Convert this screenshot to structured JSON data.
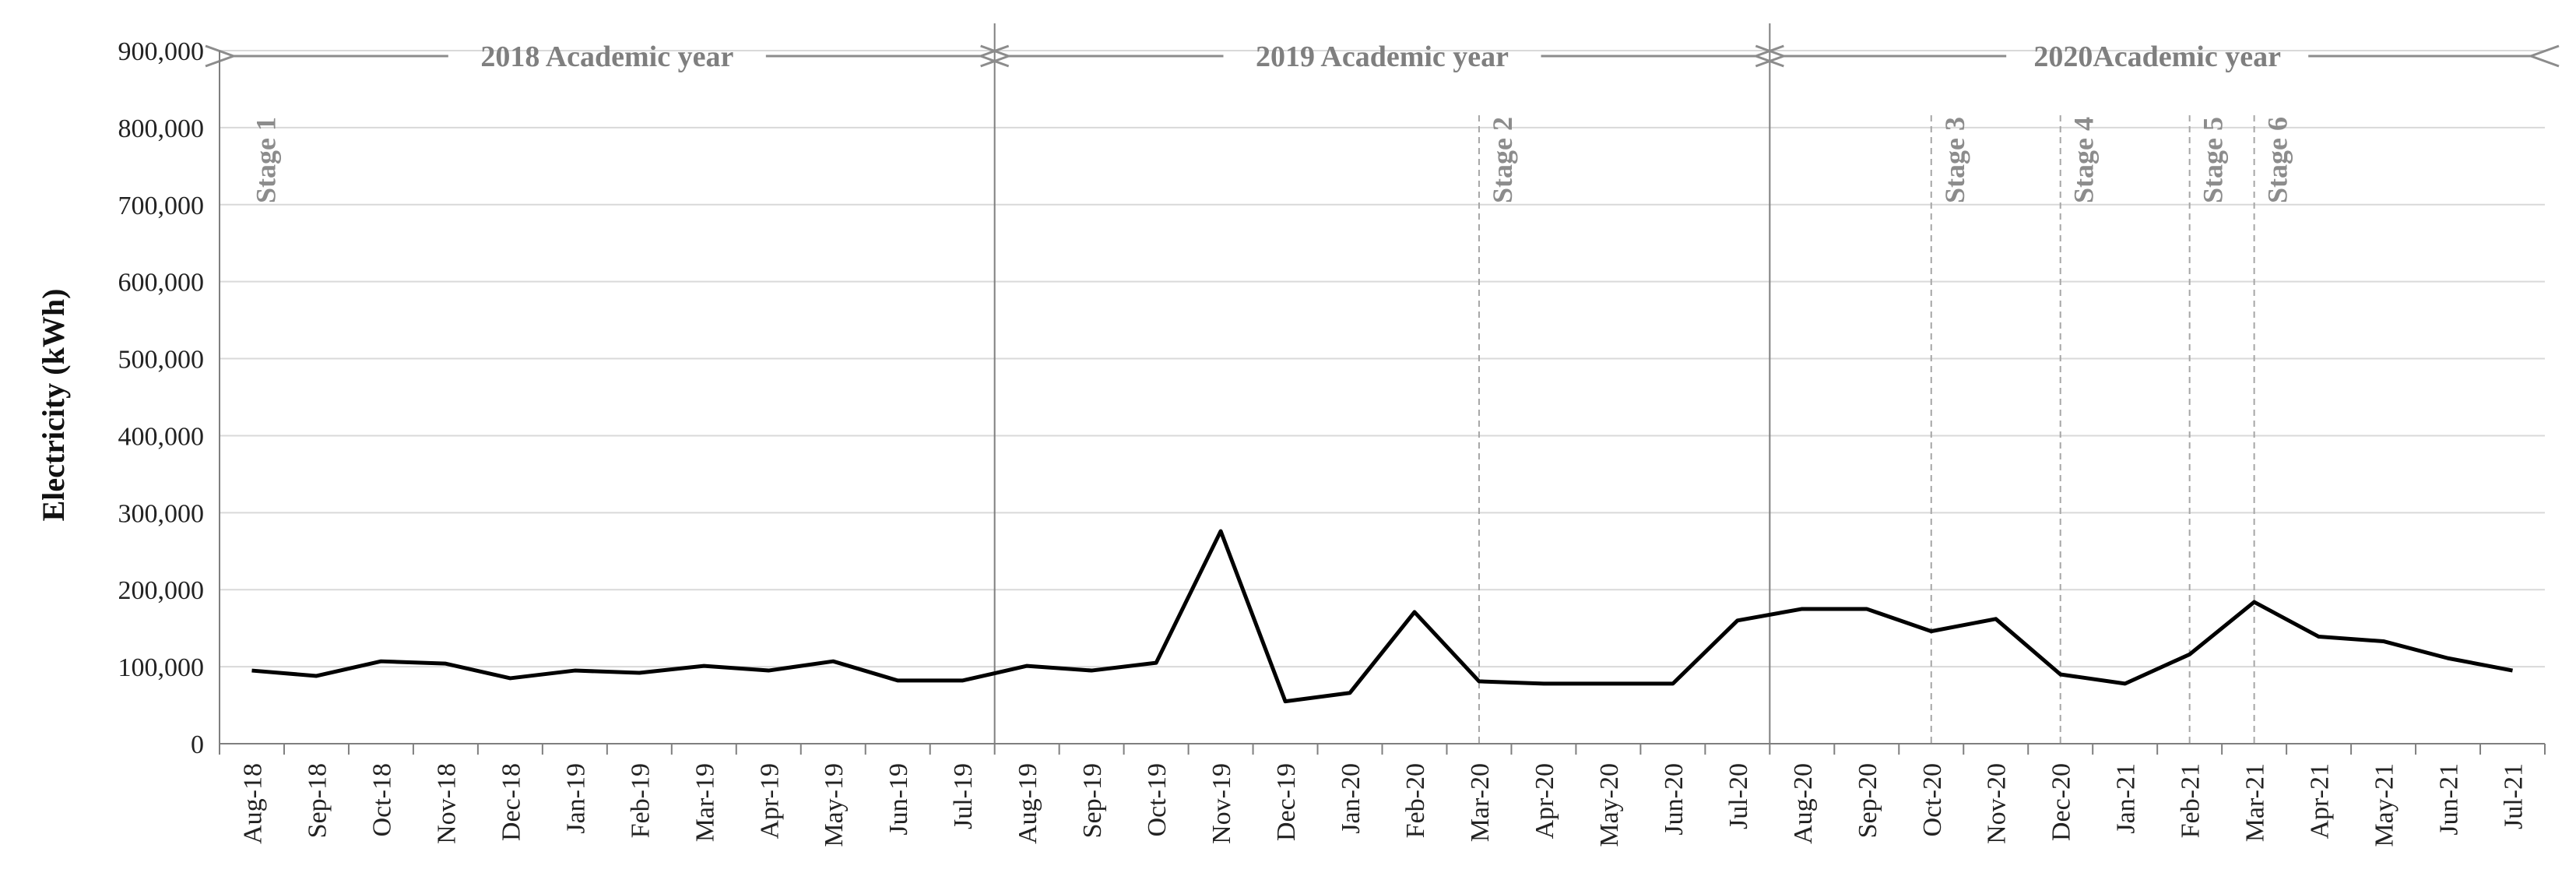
{
  "chart_data": {
    "type": "line",
    "title": "",
    "xlabel": "",
    "ylabel": "Electricity (kWh)",
    "ylim": [
      0,
      900000
    ],
    "yticks": [
      0,
      100000,
      200000,
      300000,
      400000,
      500000,
      600000,
      700000,
      800000,
      900000
    ],
    "ytick_labels": [
      "0",
      "100,000",
      "200,000",
      "300,000",
      "400,000",
      "500,000",
      "600,000",
      "700,000",
      "800,000",
      "900,000"
    ],
    "grid": "horizontal",
    "legend": "none",
    "categories": [
      "Aug-18",
      "Sep-18",
      "Oct-18",
      "Nov-18",
      "Dec-18",
      "Jan-19",
      "Feb-19",
      "Mar-19",
      "Apr-19",
      "May-19",
      "Jun-19",
      "Jul-19",
      "Aug-19",
      "Sep-19",
      "Oct-19",
      "Nov-19",
      "Dec-19",
      "Jan-20",
      "Feb-20",
      "Mar-20",
      "Apr-20",
      "May-20",
      "Jun-20",
      "Jul-20",
      "Aug-20",
      "Sep-20",
      "Oct-20",
      "Nov-20",
      "Dec-20",
      "Jan-21",
      "Feb-21",
      "Mar-21",
      "Apr-21",
      "May-21",
      "Jun-21",
      "Jul-21"
    ],
    "series": [
      {
        "values": [
          95000,
          88000,
          107000,
          104000,
          85000,
          95000,
          92000,
          101000,
          95000,
          107000,
          82000,
          82000,
          101000,
          95000,
          105000,
          276000,
          55000,
          66000,
          171000,
          81000,
          78000,
          78000,
          78000,
          160000,
          175000,
          175000,
          146000,
          162000,
          90000,
          78000,
          116000,
          184000,
          139000,
          133000,
          111000,
          95000
        ],
        "color": "#000000"
      }
    ],
    "academic_years": [
      {
        "label": "2018 Academic year",
        "start_index": 0,
        "end_index": 11
      },
      {
        "label": "2019 Academic year",
        "start_index": 12,
        "end_index": 23
      },
      {
        "label": "2020Academic year",
        "start_index": 24,
        "end_index": 35
      }
    ],
    "stages": [
      {
        "label": "Stage 1",
        "index": 0,
        "line": "none"
      },
      {
        "label": "Stage 2",
        "index": 19,
        "line": "dashed"
      },
      {
        "label": "Stage 3",
        "index": 26,
        "line": "dashed"
      },
      {
        "label": "Stage 4",
        "index": 28,
        "line": "dashed"
      },
      {
        "label": "Stage 5",
        "index": 30,
        "line": "dashed"
      },
      {
        "label": "Stage 6",
        "index": 31,
        "line": "dashed"
      }
    ],
    "colors": {
      "line": "#000000",
      "grid": "#d9d9d9",
      "axis": "#7f7f7f",
      "year_divider": "#7f7f7f",
      "stage_line": "#a6a6a6",
      "annotation_text": "#7f7f7f"
    }
  }
}
